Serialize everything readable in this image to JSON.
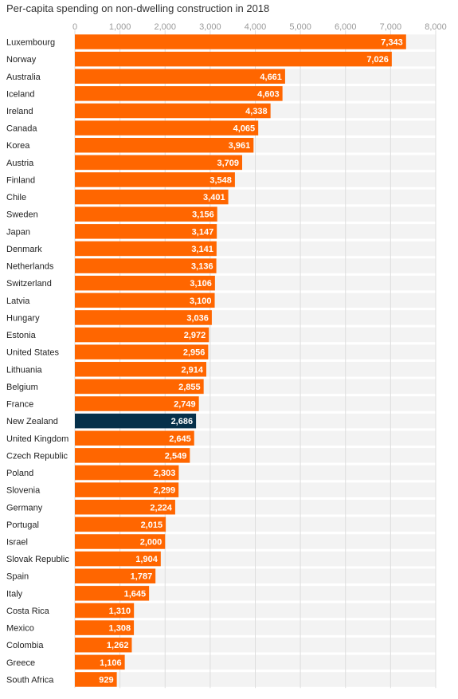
{
  "chart_data": {
    "type": "bar",
    "orientation": "horizontal",
    "title": "Per-capita spending on non-dwelling construction in 2018",
    "xlim": [
      0,
      8000
    ],
    "xticks": [
      0,
      1000,
      2000,
      3000,
      4000,
      5000,
      6000,
      7000,
      8000
    ],
    "xtick_labels": [
      "0",
      "1,000",
      "2,000",
      "3,000",
      "4,000",
      "5,000",
      "6,000",
      "7,000",
      "8,000"
    ],
    "grid": true,
    "colors": {
      "default": "#ff6600",
      "highlight": "#06304a",
      "row_band": "#f3f3f3",
      "grid": "#dddddd"
    },
    "highlight_category": "New Zealand",
    "categories": [
      "Luxembourg",
      "Norway",
      "Australia",
      "Iceland",
      "Ireland",
      "Canada",
      "Korea",
      "Austria",
      "Finland",
      "Chile",
      "Sweden",
      "Japan",
      "Denmark",
      "Netherlands",
      "Switzerland",
      "Latvia",
      "Hungary",
      "Estonia",
      "United States",
      "Lithuania",
      "Belgium",
      "France",
      "New Zealand",
      "United Kingdom",
      "Czech Republic",
      "Poland",
      "Slovenia",
      "Germany",
      "Portugal",
      "Israel",
      "Slovak Republic",
      "Spain",
      "Italy",
      "Costa Rica",
      "Mexico",
      "Colombia",
      "Greece",
      "South Africa"
    ],
    "values": [
      7343,
      7026,
      4661,
      4603,
      4338,
      4065,
      3961,
      3709,
      3548,
      3401,
      3156,
      3147,
      3141,
      3136,
      3106,
      3100,
      3036,
      2972,
      2956,
      2914,
      2855,
      2749,
      2686,
      2645,
      2549,
      2303,
      2299,
      2224,
      2015,
      2000,
      1904,
      1787,
      1645,
      1310,
      1308,
      1262,
      1106,
      929
    ],
    "value_labels": [
      "7,343",
      "7,026",
      "4,661",
      "4,603",
      "4,338",
      "4,065",
      "3,961",
      "3,709",
      "3,548",
      "3,401",
      "3,156",
      "3,147",
      "3,141",
      "3,136",
      "3,106",
      "3,100",
      "3,036",
      "2,972",
      "2,956",
      "2,914",
      "2,855",
      "2,749",
      "2,686",
      "2,645",
      "2,549",
      "2,303",
      "2,299",
      "2,224",
      "2,015",
      "2,000",
      "1,904",
      "1,787",
      "1,645",
      "1,310",
      "1,308",
      "1,262",
      "1,106",
      "929"
    ]
  }
}
